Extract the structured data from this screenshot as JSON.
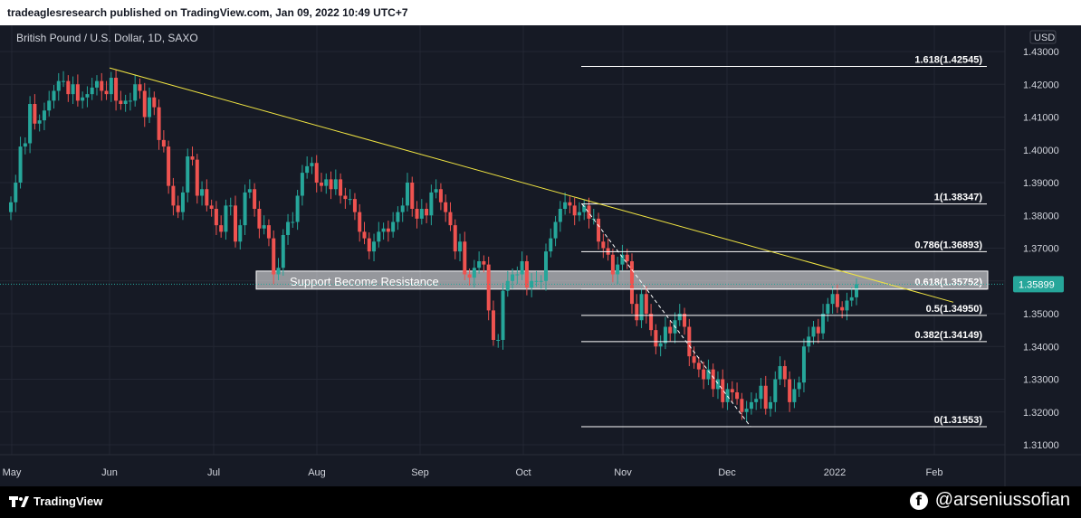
{
  "header": {
    "publisher_line": "tradeaglesresearch published on TradingView.com, Jan 09, 2022 10:49 UTC+7"
  },
  "footer": {
    "brand": "TradingView",
    "social_handle": "@arseniussofian"
  },
  "colors": {
    "up": "#26a69a",
    "down": "#ef5350",
    "trendline": "#f0e442",
    "background": "#161a25",
    "fib": "#ffffff"
  },
  "chart_data": {
    "type": "candlestick",
    "title": "British Pound / U.S. Dollar, 1D, SAXO",
    "currency_label": "USD",
    "y_ticks": [
      "1.43000",
      "1.42000",
      "1.41000",
      "1.40000",
      "1.39000",
      "1.38000",
      "1.37000",
      "1.36000",
      "1.35000",
      "1.34000",
      "1.33000",
      "1.32000",
      "1.31000"
    ],
    "x_ticks": [
      "May",
      "Jun",
      "Jul",
      "Aug",
      "Sep",
      "Oct",
      "Nov",
      "Dec",
      "2022",
      "Feb"
    ],
    "last_price": "1.35899",
    "fib_levels": [
      {
        "label": "1.618(1.42545)",
        "value": 1.42545
      },
      {
        "label": "1(1.38347)",
        "value": 1.38347
      },
      {
        "label": "0.786(1.36893)",
        "value": 1.36893
      },
      {
        "label": "0.618(1.35752)",
        "value": 1.35752
      },
      {
        "label": "0.5(1.34950)",
        "value": 1.3495
      },
      {
        "label": "0.382(1.34149)",
        "value": 1.34149
      },
      {
        "label": "0(1.31553)",
        "value": 1.31553
      }
    ],
    "zone": {
      "label": "Support Become Resistance",
      "top": 1.363,
      "bottom": 1.3575
    },
    "trendline": {
      "start_date": "2021-06-01",
      "start": 1.425,
      "end_date": "2022-02-01",
      "end": 1.3535
    },
    "closes": [
      1.384,
      1.39,
      1.401,
      1.402,
      1.414,
      1.408,
      1.409,
      1.412,
      1.415,
      1.418,
      1.421,
      1.421,
      1.417,
      1.42,
      1.415,
      1.416,
      1.417,
      1.419,
      1.421,
      1.418,
      1.417,
      1.422,
      1.415,
      1.414,
      1.415,
      1.415,
      1.42,
      1.418,
      1.41,
      1.416,
      1.413,
      1.403,
      1.401,
      1.389,
      1.383,
      1.381,
      1.387,
      1.398,
      1.397,
      1.386,
      1.388,
      1.383,
      1.382,
      1.377,
      1.375,
      1.383,
      1.383,
      1.372,
      1.377,
      1.387,
      1.388,
      1.382,
      1.376,
      1.377,
      1.373,
      1.362,
      1.364,
      1.374,
      1.378,
      1.378,
      1.386,
      1.393,
      1.395,
      1.396,
      1.39,
      1.389,
      1.391,
      1.388,
      1.391,
      1.386,
      1.385,
      1.385,
      1.381,
      1.375,
      1.373,
      1.369,
      1.372,
      1.375,
      1.376,
      1.375,
      1.378,
      1.381,
      1.383,
      1.39,
      1.382,
      1.379,
      1.382,
      1.38,
      1.387,
      1.388,
      1.384,
      1.381,
      1.377,
      1.369,
      1.372,
      1.362,
      1.361,
      1.364,
      1.366,
      1.365,
      1.351,
      1.342,
      1.342,
      1.357,
      1.36,
      1.362,
      1.362,
      1.366,
      1.358,
      1.36,
      1.36,
      1.36,
      1.369,
      1.373,
      1.378,
      1.382,
      1.384,
      1.383,
      1.38,
      1.381,
      1.383,
      1.379,
      1.379,
      1.372,
      1.37,
      1.368,
      1.362,
      1.365,
      1.368,
      1.366,
      1.353,
      1.348,
      1.356,
      1.35,
      1.345,
      1.34,
      1.341,
      1.346,
      1.344,
      1.348,
      1.35,
      1.346,
      1.337,
      1.335,
      1.333,
      1.33,
      1.333,
      1.327,
      1.33,
      1.323,
      1.327,
      1.326,
      1.324,
      1.32,
      1.321,
      1.323,
      1.324,
      1.328,
      1.321,
      1.323,
      1.33,
      1.334,
      1.33,
      1.323,
      1.327,
      1.329,
      1.34,
      1.343,
      1.346,
      1.344,
      1.35,
      1.353,
      1.356,
      1.352,
      1.351,
      1.354,
      1.355,
      1.359
    ]
  }
}
